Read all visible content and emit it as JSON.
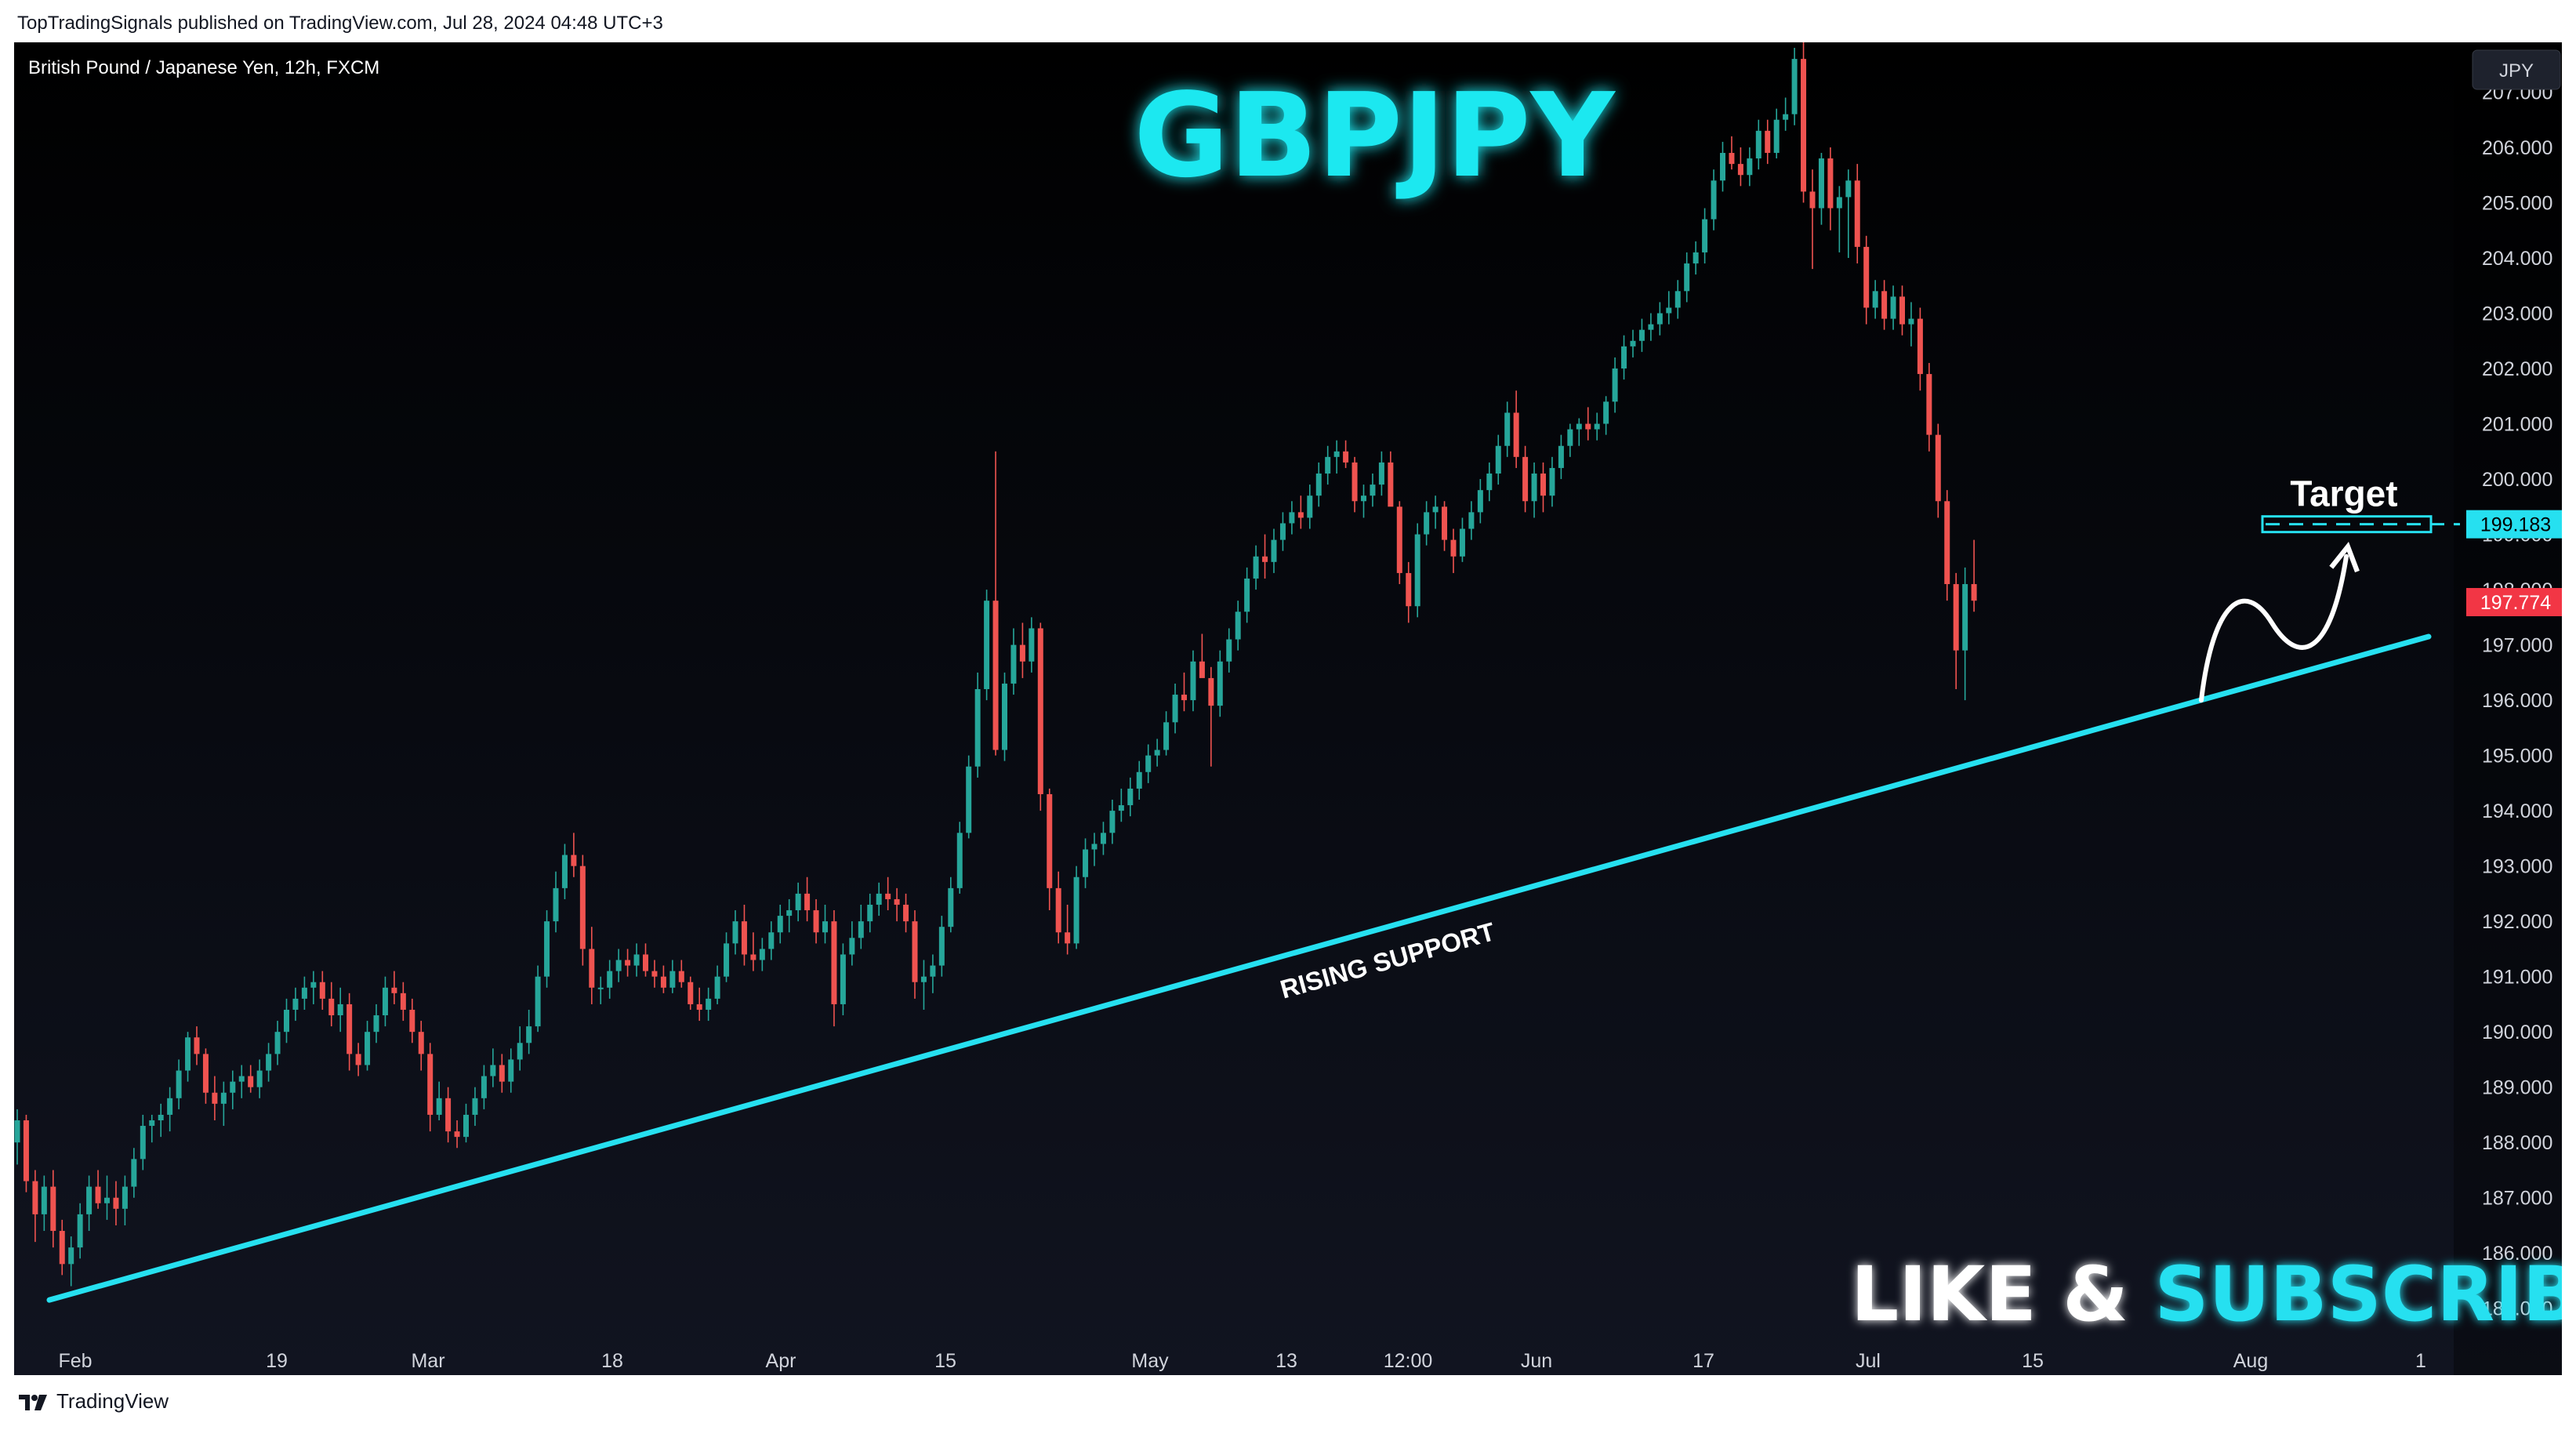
{
  "header": {
    "published_line": "TopTradingSignals published on TradingView.com, Jul 28, 2024 04:48 UTC+3"
  },
  "footer": {
    "brand": "TradingView",
    "logo_icon": "tradingview-logo-icon"
  },
  "chart_data": {
    "type": "candlestick",
    "instrument": "British Pound / Japanese Yen, 12h, FXCM",
    "title": "GBPJPY",
    "currency_label": "JPY",
    "ylim": [
      184.5,
      207.9
    ],
    "y_ticks": [
      "207.000",
      "206.000",
      "205.000",
      "204.000",
      "203.000",
      "202.000",
      "201.000",
      "200.000",
      "199.000",
      "198.000",
      "197.000",
      "196.000",
      "195.000",
      "194.000",
      "193.000",
      "192.000",
      "191.000",
      "190.000",
      "189.000",
      "188.000",
      "187.000",
      "186.000",
      "185.000"
    ],
    "x_ticks": [
      "Feb",
      "19",
      "Mar",
      "18",
      "Apr",
      "15",
      "May",
      "13",
      "12:00",
      "Jun",
      "17",
      "Jul",
      "15",
      "Aug",
      "1"
    ],
    "price_labels": [
      {
        "label": "199.183",
        "value": 199.183,
        "color": "#26e0f0"
      },
      {
        "label": "197.774",
        "value": 197.774,
        "color": "#f23645"
      }
    ],
    "annotations": {
      "support_label": "RISING SUPPORT",
      "target_label": "Target",
      "cta_prefix": "LIKE & ",
      "cta_highlight": "SUBSCRIBE"
    },
    "support_line": {
      "start": 185.15,
      "end": 197.15
    },
    "target_level": 199.183,
    "colors": {
      "up": "#26a69a",
      "down": "#ef5350",
      "accent": "#26e0f0",
      "title_glow": "#1fe8f0",
      "background": "#000000"
    },
    "candles": [
      [
        188.0,
        188.6,
        187.6,
        188.4
      ],
      [
        188.4,
        188.5,
        187.1,
        187.3
      ],
      [
        187.3,
        187.5,
        186.2,
        186.7
      ],
      [
        186.7,
        187.4,
        186.4,
        187.2
      ],
      [
        187.2,
        187.5,
        186.1,
        186.4
      ],
      [
        186.4,
        186.6,
        185.6,
        185.8
      ],
      [
        185.8,
        186.3,
        185.4,
        186.1
      ],
      [
        186.1,
        186.9,
        185.9,
        186.7
      ],
      [
        186.7,
        187.4,
        186.4,
        187.2
      ],
      [
        187.2,
        187.5,
        186.8,
        186.9
      ],
      [
        186.9,
        187.4,
        186.6,
        187.0
      ],
      [
        187.0,
        187.3,
        186.5,
        186.8
      ],
      [
        186.8,
        187.4,
        186.5,
        187.2
      ],
      [
        187.2,
        187.9,
        187.0,
        187.7
      ],
      [
        187.7,
        188.5,
        187.5,
        188.3
      ],
      [
        188.3,
        188.5,
        188.0,
        188.4
      ],
      [
        188.4,
        188.7,
        188.1,
        188.5
      ],
      [
        188.5,
        189.0,
        188.2,
        188.8
      ],
      [
        188.8,
        189.5,
        188.6,
        189.3
      ],
      [
        189.3,
        190.0,
        189.1,
        189.9
      ],
      [
        189.9,
        190.1,
        189.4,
        189.6
      ],
      [
        189.6,
        189.7,
        188.7,
        188.9
      ],
      [
        188.9,
        189.2,
        188.4,
        188.7
      ],
      [
        188.7,
        189.1,
        188.3,
        188.9
      ],
      [
        188.9,
        189.3,
        188.6,
        189.1
      ],
      [
        189.1,
        189.4,
        188.8,
        189.2
      ],
      [
        189.2,
        189.4,
        188.9,
        189.0
      ],
      [
        189.0,
        189.5,
        188.8,
        189.3
      ],
      [
        189.3,
        189.8,
        189.1,
        189.6
      ],
      [
        189.6,
        190.2,
        189.4,
        190.0
      ],
      [
        190.0,
        190.6,
        189.8,
        190.4
      ],
      [
        190.4,
        190.8,
        190.2,
        190.6
      ],
      [
        190.6,
        191.0,
        190.4,
        190.8
      ],
      [
        190.8,
        191.1,
        190.5,
        190.9
      ],
      [
        190.9,
        191.1,
        190.4,
        190.6
      ],
      [
        190.6,
        190.9,
        190.1,
        190.3
      ],
      [
        190.3,
        190.8,
        190.0,
        190.5
      ],
      [
        190.5,
        190.7,
        189.3,
        189.6
      ],
      [
        189.6,
        189.8,
        189.2,
        189.4
      ],
      [
        189.4,
        190.2,
        189.3,
        190.0
      ],
      [
        190.0,
        190.5,
        189.8,
        190.3
      ],
      [
        190.3,
        191.0,
        190.1,
        190.8
      ],
      [
        190.8,
        191.1,
        190.5,
        190.7
      ],
      [
        190.7,
        190.9,
        190.2,
        190.4
      ],
      [
        190.4,
        190.6,
        189.8,
        190.0
      ],
      [
        190.0,
        190.2,
        189.3,
        189.6
      ],
      [
        189.6,
        189.8,
        188.2,
        188.5
      ],
      [
        188.5,
        189.1,
        188.4,
        188.8
      ],
      [
        188.8,
        189.0,
        188.0,
        188.2
      ],
      [
        188.2,
        188.4,
        187.9,
        188.1
      ],
      [
        188.1,
        188.7,
        188.0,
        188.5
      ],
      [
        188.5,
        189.0,
        188.3,
        188.8
      ],
      [
        188.8,
        189.4,
        188.6,
        189.2
      ],
      [
        189.2,
        189.7,
        189.0,
        189.4
      ],
      [
        189.4,
        189.6,
        188.9,
        189.1
      ],
      [
        189.1,
        189.7,
        188.9,
        189.5
      ],
      [
        189.5,
        190.1,
        189.3,
        189.8
      ],
      [
        189.8,
        190.4,
        189.6,
        190.1
      ],
      [
        190.1,
        191.2,
        190.0,
        191.0
      ],
      [
        191.0,
        192.2,
        190.8,
        192.0
      ],
      [
        192.0,
        192.9,
        191.8,
        192.6
      ],
      [
        192.6,
        193.4,
        192.4,
        193.2
      ],
      [
        193.2,
        193.6,
        192.8,
        193.0
      ],
      [
        193.0,
        193.2,
        191.2,
        191.5
      ],
      [
        191.5,
        191.9,
        190.5,
        190.8
      ],
      [
        190.8,
        191.0,
        190.5,
        190.8
      ],
      [
        190.8,
        191.3,
        190.6,
        191.1
      ],
      [
        191.1,
        191.5,
        190.9,
        191.3
      ],
      [
        191.3,
        191.5,
        191.0,
        191.2
      ],
      [
        191.2,
        191.6,
        191.0,
        191.4
      ],
      [
        191.4,
        191.6,
        191.0,
        191.1
      ],
      [
        191.1,
        191.3,
        190.8,
        191.0
      ],
      [
        191.0,
        191.2,
        190.7,
        190.8
      ],
      [
        190.8,
        191.3,
        190.7,
        191.1
      ],
      [
        191.1,
        191.3,
        190.8,
        190.9
      ],
      [
        190.9,
        191.0,
        190.4,
        190.5
      ],
      [
        190.5,
        190.8,
        190.2,
        190.4
      ],
      [
        190.4,
        190.8,
        190.2,
        190.6
      ],
      [
        190.6,
        191.2,
        190.5,
        191.0
      ],
      [
        191.0,
        191.8,
        190.9,
        191.6
      ],
      [
        191.6,
        192.2,
        191.4,
        192.0
      ],
      [
        192.0,
        192.3,
        191.2,
        191.4
      ],
      [
        191.4,
        191.8,
        191.1,
        191.3
      ],
      [
        191.3,
        191.7,
        191.1,
        191.5
      ],
      [
        191.5,
        192.0,
        191.3,
        191.8
      ],
      [
        191.8,
        192.3,
        191.6,
        192.1
      ],
      [
        192.1,
        192.4,
        191.8,
        192.2
      ],
      [
        192.2,
        192.7,
        192.0,
        192.5
      ],
      [
        192.5,
        192.8,
        192.0,
        192.2
      ],
      [
        192.2,
        192.4,
        191.6,
        191.8
      ],
      [
        191.8,
        192.3,
        191.6,
        192.0
      ],
      [
        192.0,
        192.2,
        190.1,
        190.5
      ],
      [
        190.5,
        191.6,
        190.3,
        191.4
      ],
      [
        191.4,
        192.0,
        191.2,
        191.7
      ],
      [
        191.7,
        192.3,
        191.5,
        192.0
      ],
      [
        192.0,
        192.5,
        191.8,
        192.3
      ],
      [
        192.3,
        192.7,
        192.1,
        192.5
      ],
      [
        192.5,
        192.8,
        192.2,
        192.4
      ],
      [
        192.4,
        192.6,
        192.0,
        192.3
      ],
      [
        192.3,
        192.5,
        191.8,
        192.0
      ],
      [
        192.0,
        192.2,
        190.6,
        190.9
      ],
      [
        190.9,
        191.3,
        190.4,
        191.0
      ],
      [
        191.0,
        191.4,
        190.7,
        191.2
      ],
      [
        191.2,
        192.1,
        191.0,
        191.9
      ],
      [
        191.9,
        192.8,
        191.8,
        192.6
      ],
      [
        192.6,
        193.8,
        192.5,
        193.6
      ],
      [
        193.6,
        195.0,
        193.5,
        194.8
      ],
      [
        194.8,
        196.5,
        194.6,
        196.2
      ],
      [
        196.2,
        198.0,
        196.0,
        197.8
      ],
      [
        197.8,
        200.5,
        195.0,
        195.1
      ],
      [
        195.1,
        196.5,
        194.9,
        196.3
      ],
      [
        196.3,
        197.3,
        196.1,
        197.0
      ],
      [
        197.0,
        197.4,
        196.4,
        196.7
      ],
      [
        196.7,
        197.5,
        196.5,
        197.3
      ],
      [
        197.3,
        197.4,
        194.0,
        194.3
      ],
      [
        194.3,
        194.4,
        192.2,
        192.6
      ],
      [
        192.6,
        192.9,
        191.6,
        191.8
      ],
      [
        191.8,
        192.3,
        191.4,
        191.6
      ],
      [
        191.6,
        193.0,
        191.5,
        192.8
      ],
      [
        192.8,
        193.5,
        192.6,
        193.3
      ],
      [
        193.3,
        193.6,
        193.0,
        193.4
      ],
      [
        193.4,
        193.8,
        193.2,
        193.6
      ],
      [
        193.6,
        194.2,
        193.4,
        194.0
      ],
      [
        194.0,
        194.4,
        193.8,
        194.1
      ],
      [
        194.1,
        194.6,
        193.9,
        194.4
      ],
      [
        194.4,
        194.9,
        194.2,
        194.7
      ],
      [
        194.7,
        195.2,
        194.5,
        195.0
      ],
      [
        195.0,
        195.3,
        194.8,
        195.1
      ],
      [
        195.1,
        195.8,
        195.0,
        195.6
      ],
      [
        195.6,
        196.3,
        195.4,
        196.1
      ],
      [
        196.1,
        196.5,
        195.8,
        196.0
      ],
      [
        196.0,
        196.9,
        195.8,
        196.7
      ],
      [
        196.7,
        197.2,
        196.5,
        196.4
      ],
      [
        196.4,
        196.6,
        194.8,
        195.9
      ],
      [
        195.9,
        196.9,
        195.7,
        196.7
      ],
      [
        196.7,
        197.3,
        196.5,
        197.1
      ],
      [
        197.1,
        197.8,
        196.9,
        197.6
      ],
      [
        197.6,
        198.4,
        197.4,
        198.2
      ],
      [
        198.2,
        198.8,
        198.0,
        198.6
      ],
      [
        198.6,
        199.0,
        198.2,
        198.5
      ],
      [
        198.5,
        199.1,
        198.3,
        198.9
      ],
      [
        198.9,
        199.4,
        198.7,
        199.2
      ],
      [
        199.2,
        199.6,
        199.0,
        199.4
      ],
      [
        199.4,
        199.7,
        199.1,
        199.3
      ],
      [
        199.3,
        199.9,
        199.1,
        199.7
      ],
      [
        199.7,
        200.3,
        199.5,
        200.1
      ],
      [
        200.1,
        200.6,
        199.9,
        200.4
      ],
      [
        200.4,
        200.7,
        200.1,
        200.5
      ],
      [
        200.5,
        200.7,
        200.2,
        200.3
      ],
      [
        200.3,
        200.4,
        199.4,
        199.6
      ],
      [
        199.6,
        199.9,
        199.3,
        199.7
      ],
      [
        199.7,
        200.1,
        199.5,
        199.9
      ],
      [
        199.9,
        200.5,
        199.7,
        200.3
      ],
      [
        200.3,
        200.5,
        199.7,
        199.5
      ],
      [
        199.5,
        199.6,
        198.1,
        198.3
      ],
      [
        198.3,
        198.5,
        197.4,
        197.7
      ],
      [
        197.7,
        199.2,
        197.5,
        199.0
      ],
      [
        199.0,
        199.6,
        198.8,
        199.4
      ],
      [
        199.4,
        199.7,
        199.1,
        199.5
      ],
      [
        199.5,
        199.6,
        198.7,
        198.9
      ],
      [
        198.9,
        199.1,
        198.3,
        198.6
      ],
      [
        198.6,
        199.3,
        198.5,
        199.1
      ],
      [
        199.1,
        199.6,
        198.9,
        199.4
      ],
      [
        199.4,
        200.0,
        199.2,
        199.8
      ],
      [
        199.8,
        200.3,
        199.6,
        200.1
      ],
      [
        200.1,
        200.8,
        199.9,
        200.6
      ],
      [
        200.6,
        201.4,
        200.4,
        201.2
      ],
      [
        201.2,
        201.6,
        200.2,
        200.4
      ],
      [
        200.4,
        200.6,
        199.4,
        199.6
      ],
      [
        199.6,
        200.3,
        199.3,
        200.1
      ],
      [
        200.1,
        200.3,
        199.4,
        199.7
      ],
      [
        199.7,
        200.4,
        199.5,
        200.2
      ],
      [
        200.2,
        200.8,
        200.0,
        200.6
      ],
      [
        200.6,
        201.0,
        200.4,
        200.9
      ],
      [
        200.9,
        201.1,
        200.6,
        201.0
      ],
      [
        201.0,
        201.3,
        200.7,
        200.9
      ],
      [
        200.9,
        201.2,
        200.7,
        201.0
      ],
      [
        201.0,
        201.5,
        200.8,
        201.4
      ],
      [
        201.4,
        202.2,
        201.2,
        202.0
      ],
      [
        202.0,
        202.6,
        201.8,
        202.4
      ],
      [
        202.4,
        202.7,
        202.2,
        202.5
      ],
      [
        202.5,
        202.9,
        202.3,
        202.7
      ],
      [
        202.7,
        203.0,
        202.5,
        202.8
      ],
      [
        202.8,
        203.2,
        202.6,
        203.0
      ],
      [
        203.0,
        203.4,
        202.8,
        203.1
      ],
      [
        203.1,
        203.6,
        202.9,
        203.4
      ],
      [
        203.4,
        204.1,
        203.2,
        203.9
      ],
      [
        203.9,
        204.3,
        203.7,
        204.1
      ],
      [
        204.1,
        204.9,
        203.9,
        204.7
      ],
      [
        204.7,
        205.6,
        204.5,
        205.4
      ],
      [
        205.4,
        206.1,
        205.2,
        205.9
      ],
      [
        205.9,
        206.2,
        205.6,
        205.7
      ],
      [
        205.7,
        206.0,
        205.3,
        205.5
      ],
      [
        205.5,
        206.0,
        205.3,
        205.8
      ],
      [
        205.8,
        206.5,
        205.6,
        206.3
      ],
      [
        206.3,
        206.5,
        205.7,
        205.9
      ],
      [
        205.9,
        206.7,
        205.8,
        206.5
      ],
      [
        206.5,
        206.9,
        206.3,
        206.6
      ],
      [
        206.6,
        207.8,
        206.4,
        207.6
      ],
      [
        207.6,
        207.9,
        205.0,
        205.2
      ],
      [
        205.2,
        205.6,
        203.8,
        204.9
      ],
      [
        204.9,
        205.9,
        204.6,
        205.8
      ],
      [
        205.8,
        206.0,
        204.5,
        204.9
      ],
      [
        204.9,
        205.3,
        204.1,
        205.1
      ],
      [
        205.1,
        205.6,
        204.0,
        205.4
      ],
      [
        205.4,
        205.7,
        203.9,
        204.2
      ],
      [
        204.2,
        204.4,
        202.8,
        203.1
      ],
      [
        203.1,
        203.6,
        202.9,
        203.4
      ],
      [
        203.4,
        203.6,
        202.7,
        202.9
      ],
      [
        202.9,
        203.5,
        202.7,
        203.3
      ],
      [
        203.3,
        203.5,
        202.6,
        202.8
      ],
      [
        202.8,
        203.2,
        202.4,
        202.9
      ],
      [
        202.9,
        203.1,
        201.6,
        201.9
      ],
      [
        201.9,
        202.1,
        200.5,
        200.8
      ],
      [
        200.8,
        201.0,
        199.3,
        199.6
      ],
      [
        199.6,
        199.8,
        197.8,
        198.1
      ],
      [
        198.1,
        198.3,
        196.2,
        196.9
      ],
      [
        196.9,
        198.4,
        196.0,
        198.1
      ],
      [
        198.1,
        198.9,
        197.6,
        197.8
      ]
    ]
  }
}
